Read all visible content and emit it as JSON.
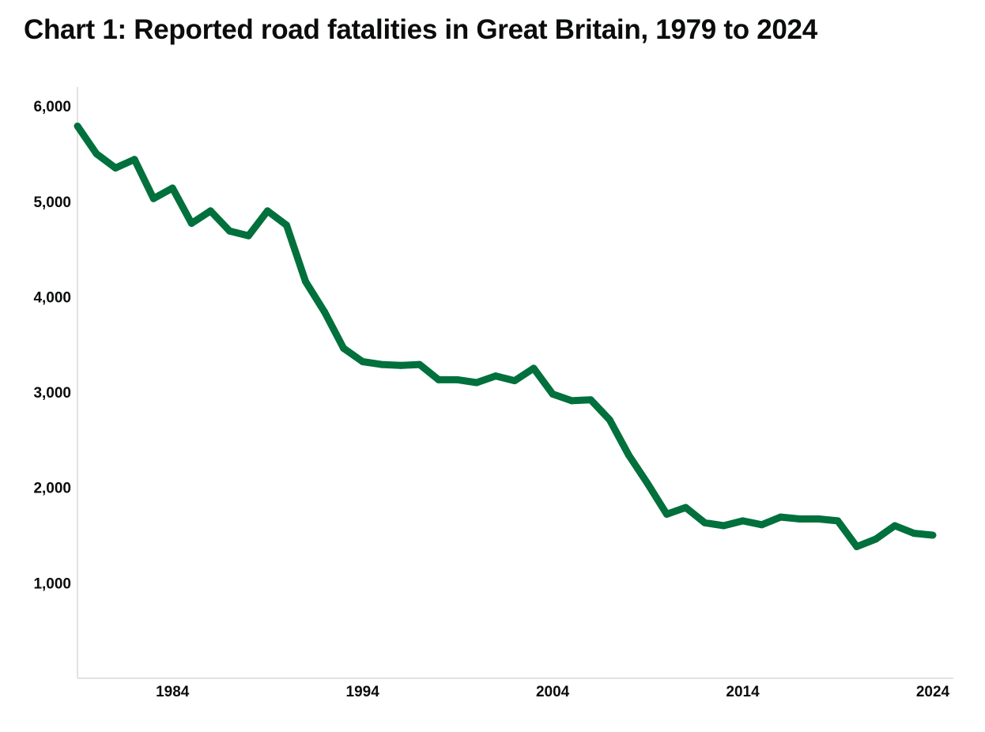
{
  "chart_data": {
    "type": "line",
    "title": "Chart 1: Reported road fatalities in Great Britain, 1979 to 2024",
    "xlabel": "",
    "ylabel": "",
    "xlim": [
      1979,
      2024
    ],
    "ylim": [
      0,
      6200
    ],
    "x_ticks": [
      1984,
      1994,
      2004,
      2014,
      2024
    ],
    "x_tick_labels": [
      "1984",
      "1994",
      "2004",
      "2014",
      "2024"
    ],
    "y_ticks": [
      1000,
      2000,
      3000,
      4000,
      5000,
      6000
    ],
    "y_tick_labels": [
      "1,000",
      "2,000",
      "3,000",
      "4,000",
      "5,000",
      "6,000"
    ],
    "grid": false,
    "legend": "none",
    "series": [
      {
        "color": "#00703c",
        "x": [
          1979,
          1980,
          1981,
          1982,
          1983,
          1984,
          1985,
          1986,
          1987,
          1988,
          1989,
          1990,
          1991,
          1992,
          1993,
          1994,
          1995,
          1996,
          1997,
          1998,
          1999,
          2000,
          2001,
          2002,
          2003,
          2004,
          2005,
          2006,
          2007,
          2008,
          2009,
          2010,
          2011,
          2012,
          2013,
          2014,
          2015,
          2016,
          2017,
          2018,
          2019,
          2020,
          2021,
          2022,
          2023,
          2024
        ],
        "values": [
          5790,
          5500,
          5350,
          5440,
          5030,
          5140,
          4770,
          4900,
          4690,
          4640,
          4900,
          4750,
          4160,
          3840,
          3460,
          3320,
          3290,
          3280,
          3290,
          3130,
          3130,
          3100,
          3170,
          3120,
          3250,
          2980,
          2910,
          2920,
          2710,
          2340,
          2040,
          1720,
          1790,
          1630,
          1600,
          1650,
          1610,
          1690,
          1670,
          1670,
          1650,
          1380,
          1460,
          1600,
          1520,
          1500
        ]
      }
    ]
  }
}
